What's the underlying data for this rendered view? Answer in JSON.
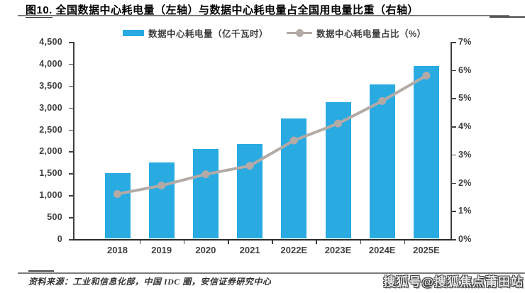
{
  "header": {
    "title_prefix": "图10.",
    "title_rest": " 全国数据中心耗电量（左轴）与数据中心耗电量占全国用电量比重（右轴）"
  },
  "legend": {
    "items": [
      {
        "label": "数据中心耗电量（亿千瓦时）",
        "marker": "bar-swatch"
      },
      {
        "label": "数据中心耗电量占比（%）",
        "marker": "line-marker"
      }
    ]
  },
  "chart_data": {
    "type": "bar",
    "title": "图10. 全国数据中心耗电量（左轴）与数据中心耗电量占全国用电量比重（右轴）",
    "categories": [
      "2018",
      "2019",
      "2020",
      "2021",
      "2022E",
      "2023E",
      "2024E",
      "2025E"
    ],
    "series": [
      {
        "name": "数据中心耗电量（亿千瓦时）",
        "type": "bar",
        "axis": "left",
        "values": [
          1500,
          1750,
          2050,
          2170,
          2750,
          3130,
          3530,
          3950
        ],
        "color": "#29abe2"
      },
      {
        "name": "数据中心耗电量占比（%）",
        "type": "line",
        "axis": "right",
        "values": [
          1.6,
          1.9,
          2.3,
          2.6,
          3.5,
          4.1,
          4.9,
          5.8
        ],
        "color": "#b3aaa6"
      }
    ],
    "left_axis": {
      "min": 0,
      "max": 4500,
      "step": 500,
      "tick_labels": [
        "4,500",
        "4,000",
        "3,500",
        "3,000",
        "2,500",
        "2,000",
        "1,500",
        "1,000",
        "500",
        "0"
      ]
    },
    "right_axis": {
      "min": 0,
      "max": 7,
      "step": 1,
      "tick_labels": [
        "7%",
        "6%",
        "5%",
        "4%",
        "3%",
        "2%",
        "1%",
        "0%"
      ]
    },
    "grid": false,
    "legend_position": "top"
  },
  "footer": {
    "source": "资料来源：工业和信息化部，中国 IDC 圈，安信证券研究中心",
    "watermark": "搜狐号@搜狐焦点莆田站"
  },
  "colors": {
    "bar": "#29abe2",
    "line": "#b3aaa6",
    "axis": "#3f3f3f",
    "text": "#404040"
  }
}
